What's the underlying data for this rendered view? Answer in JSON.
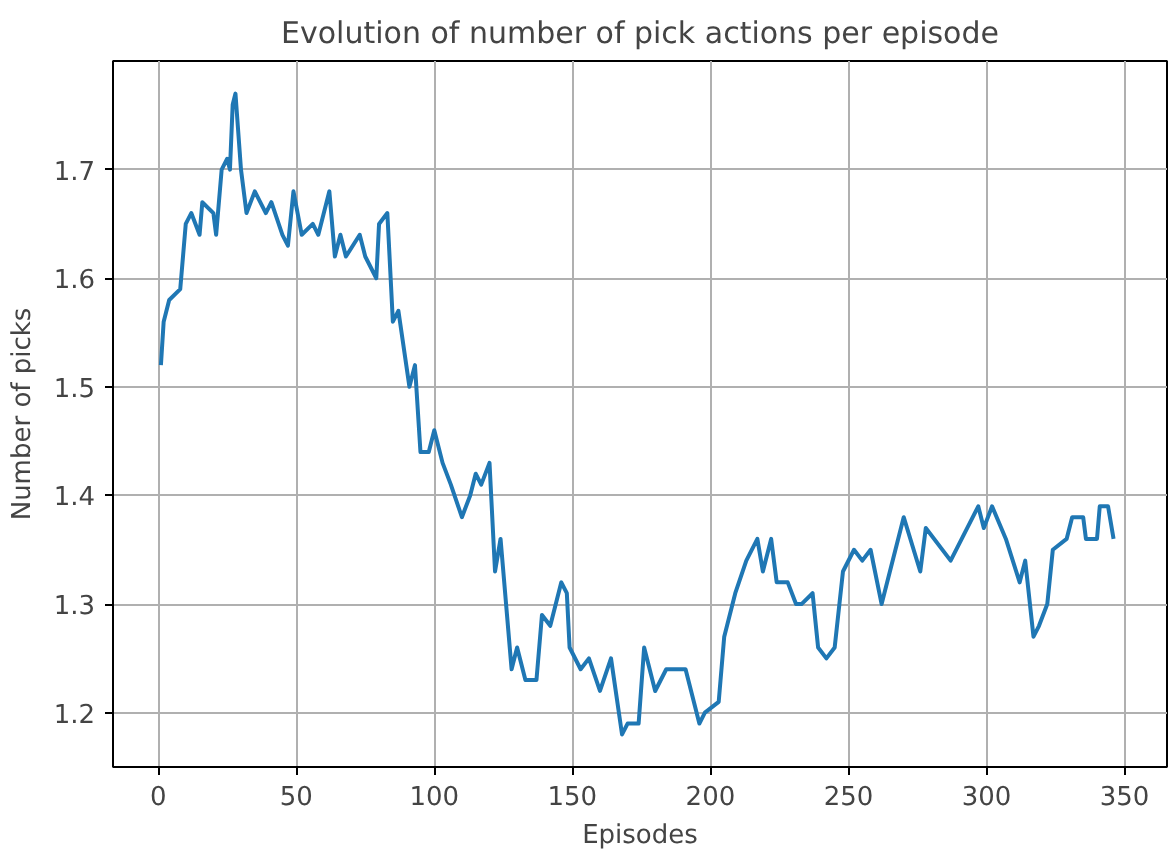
{
  "chart_data": {
    "type": "line",
    "title": "Evolution of number of pick actions per episode",
    "xlabel": "Episodes",
    "ylabel": "Number of picks",
    "x": [
      1,
      2,
      4,
      8,
      10,
      12,
      15,
      16,
      20,
      21,
      23,
      25,
      26,
      27,
      28,
      30,
      32,
      35,
      39,
      41,
      45,
      47,
      49,
      52,
      56,
      58,
      62,
      64,
      66,
      68,
      73,
      75,
      79,
      80,
      83,
      85,
      87,
      91,
      93,
      95,
      98,
      100,
      103,
      106,
      110,
      113,
      115,
      117,
      120,
      122,
      124,
      128,
      130,
      133,
      137,
      139,
      142,
      146,
      148,
      149,
      153,
      156,
      160,
      164,
      168,
      170,
      174,
      176,
      180,
      184,
      191,
      196,
      198,
      203,
      205,
      209,
      213,
      217,
      219,
      222,
      224,
      228,
      231,
      233,
      237,
      239,
      242,
      245,
      248,
      252,
      255,
      258,
      262,
      270,
      276,
      278,
      287,
      297,
      299,
      302,
      307,
      312,
      314,
      317,
      319,
      322,
      324,
      329,
      331,
      335,
      336,
      340,
      341,
      344,
      346
    ],
    "series": [
      {
        "color": "#1f77b4",
        "values": [
          1.52,
          1.56,
          1.58,
          1.59,
          1.65,
          1.66,
          1.64,
          1.67,
          1.66,
          1.64,
          1.7,
          1.71,
          1.7,
          1.76,
          1.77,
          1.7,
          1.66,
          1.68,
          1.66,
          1.67,
          1.64,
          1.63,
          1.68,
          1.64,
          1.65,
          1.64,
          1.68,
          1.62,
          1.64,
          1.62,
          1.64,
          1.62,
          1.6,
          1.65,
          1.66,
          1.56,
          1.57,
          1.5,
          1.52,
          1.44,
          1.44,
          1.46,
          1.43,
          1.41,
          1.38,
          1.4,
          1.42,
          1.41,
          1.43,
          1.33,
          1.36,
          1.24,
          1.26,
          1.23,
          1.23,
          1.29,
          1.28,
          1.32,
          1.31,
          1.26,
          1.24,
          1.25,
          1.22,
          1.25,
          1.18,
          1.19,
          1.19,
          1.26,
          1.22,
          1.24,
          1.24,
          1.19,
          1.2,
          1.21,
          1.27,
          1.31,
          1.34,
          1.36,
          1.33,
          1.36,
          1.32,
          1.32,
          1.3,
          1.3,
          1.31,
          1.26,
          1.25,
          1.26,
          1.33,
          1.35,
          1.34,
          1.35,
          1.3,
          1.38,
          1.33,
          1.37,
          1.34,
          1.39,
          1.37,
          1.39,
          1.36,
          1.32,
          1.34,
          1.27,
          1.28,
          1.3,
          1.35,
          1.36,
          1.38,
          1.38,
          1.36,
          1.36,
          1.39,
          1.39,
          1.36
        ]
      }
    ],
    "xlim": [
      -16.35,
      365.35
    ],
    "ylim": [
      1.15,
      1.8
    ],
    "xticks": [
      0,
      50,
      100,
      150,
      200,
      250,
      300,
      350
    ],
    "yticks": [
      1.2,
      1.3,
      1.4,
      1.5,
      1.6,
      1.7
    ],
    "grid": true,
    "marker": "none",
    "line_style": "solid"
  }
}
